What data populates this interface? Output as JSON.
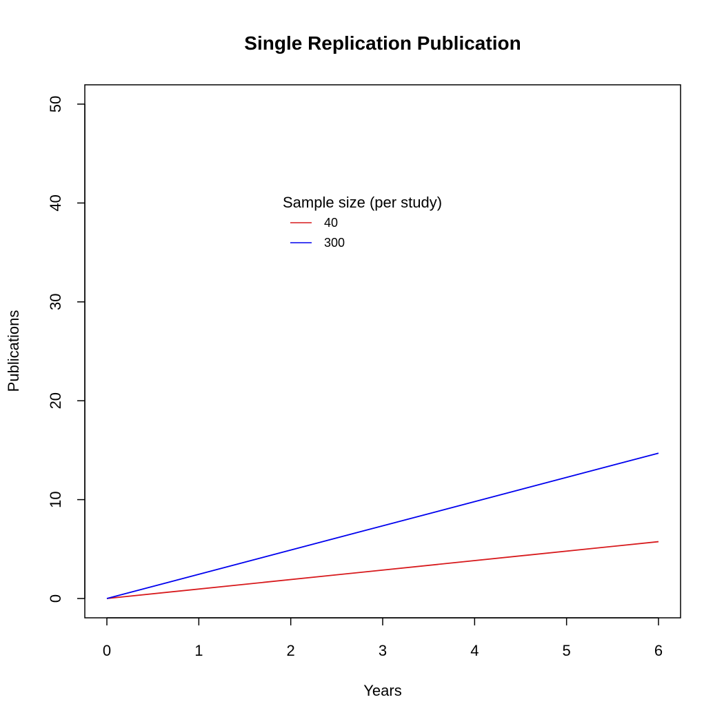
{
  "chart_data": {
    "type": "line",
    "title": "Single Replication Publication",
    "xlabel": "Years",
    "ylabel": "Publications",
    "xlim": [
      0,
      6
    ],
    "ylim": [
      0,
      50
    ],
    "x_ticks": [
      0,
      1,
      2,
      3,
      4,
      5,
      6
    ],
    "y_ticks": [
      0,
      10,
      20,
      30,
      40,
      50
    ],
    "grid": false,
    "legend": {
      "title": "Sample size (per study)",
      "placement": "top-center"
    },
    "series": [
      {
        "name": "40",
        "color": "#d7191c",
        "x": [
          0,
          6
        ],
        "y": [
          0,
          5.75
        ]
      },
      {
        "name": "300",
        "color": "#0000ee",
        "x": [
          0,
          6
        ],
        "y": [
          0,
          14.7
        ]
      }
    ]
  }
}
